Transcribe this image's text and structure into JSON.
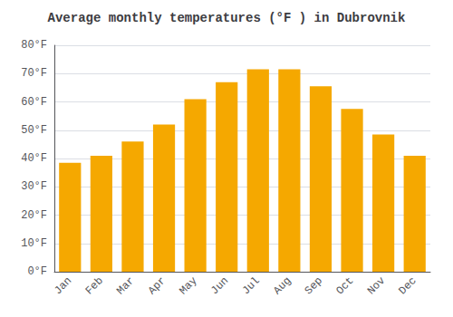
{
  "chart_data": {
    "type": "bar",
    "title": "Average monthly temperatures (°F ) in Dubrovnik",
    "categories": [
      "Jan",
      "Feb",
      "Mar",
      "Apr",
      "May",
      "Jun",
      "Jul",
      "Aug",
      "Sep",
      "Oct",
      "Nov",
      "Dec"
    ],
    "values": [
      38.5,
      41.0,
      46.0,
      52.0,
      61.0,
      67.0,
      71.5,
      71.5,
      65.5,
      57.5,
      48.5,
      41.0
    ],
    "color": "#F5A800",
    "ylim": [
      0,
      80
    ],
    "yticks": [
      {
        "value": 0,
        "label": "0°F"
      },
      {
        "value": 10,
        "label": "10°F"
      },
      {
        "value": 20,
        "label": "20°F"
      },
      {
        "value": 30,
        "label": "30°F"
      },
      {
        "value": 40,
        "label": "40°F"
      },
      {
        "value": 50,
        "label": "50°F"
      },
      {
        "value": 60,
        "label": "60°F"
      },
      {
        "value": 70,
        "label": "70°F"
      },
      {
        "value": 80,
        "label": "80°F"
      }
    ],
    "grid": true
  }
}
